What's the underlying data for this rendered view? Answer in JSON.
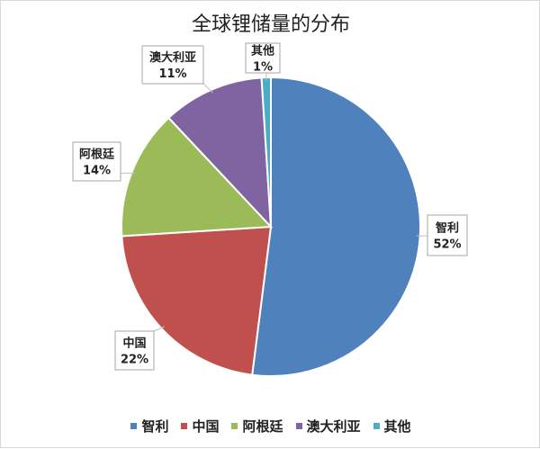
{
  "chart_data": {
    "type": "pie",
    "title": "全球锂储量的分布",
    "categories": [
      "智利",
      "中国",
      "阿根廷",
      "澳大利亚",
      "其他"
    ],
    "values": [
      52,
      22,
      14,
      11,
      1
    ],
    "labels": [
      "52%",
      "22%",
      "14%",
      "11%",
      "1%"
    ],
    "colors": [
      "#4F81BD",
      "#C0504D",
      "#9BBB59",
      "#8064A2",
      "#4BACC6"
    ],
    "start_angle": "top",
    "direction": "clockwise",
    "legend_position": "bottom"
  }
}
